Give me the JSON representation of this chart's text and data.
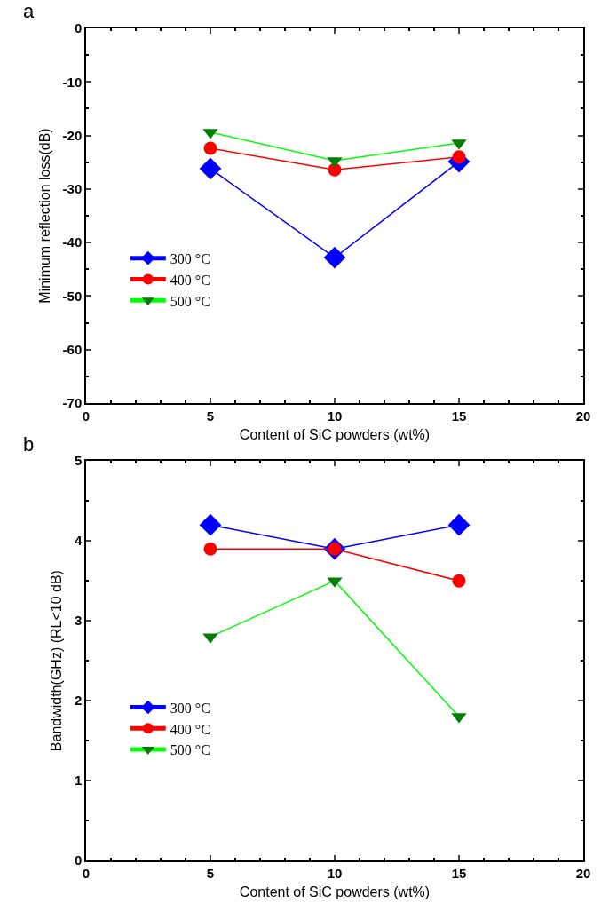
{
  "chart_data": [
    {
      "type": "line",
      "annotations": [
        "a"
      ],
      "xlabel": "Content of SiC powders (wt%)",
      "ylabel": "Minimum reflection loss(dB)",
      "x": [
        5,
        10,
        15
      ],
      "xlim": [
        0,
        20
      ],
      "xticks": [
        0,
        5,
        10,
        15,
        20
      ],
      "ylim": [
        -70,
        0
      ],
      "yticks": [
        -70,
        -60,
        -50,
        -40,
        -30,
        -20,
        -10,
        0
      ],
      "legend": "left",
      "series": [
        {
          "name": "300 °C",
          "color": "#0000ff",
          "marker": "diamond",
          "values": [
            -26.2,
            -42.8,
            -24.9
          ]
        },
        {
          "name": "400 °C",
          "color": "#ff0000",
          "marker": "circle",
          "values": [
            -22.4,
            -26.4,
            -24.0
          ]
        },
        {
          "name": "500 °C",
          "color": "#00ff00",
          "marker": "triangle",
          "values": [
            -19.4,
            -24.7,
            -21.4
          ]
        }
      ]
    },
    {
      "type": "line",
      "annotations": [
        "b"
      ],
      "xlabel": "Content of SiC powders (wt%)",
      "ylabel": "Bandwidth(GHz) (RL<10 dB)",
      "x": [
        5,
        10,
        15
      ],
      "xlim": [
        0,
        20
      ],
      "xticks": [
        0,
        5,
        10,
        15,
        20
      ],
      "ylim": [
        0,
        5
      ],
      "yticks": [
        0,
        1,
        2,
        3,
        4,
        5
      ],
      "legend": "left",
      "series": [
        {
          "name": "300 °C",
          "color": "#0000ff",
          "marker": "diamond",
          "values": [
            4.2,
            3.9,
            4.2
          ]
        },
        {
          "name": "400 °C",
          "color": "#ff0000",
          "marker": "circle",
          "values": [
            3.9,
            3.9,
            3.5
          ]
        },
        {
          "name": "500 °C",
          "color": "#00ff00",
          "marker": "triangle",
          "values": [
            2.8,
            3.5,
            1.8
          ]
        }
      ]
    }
  ]
}
